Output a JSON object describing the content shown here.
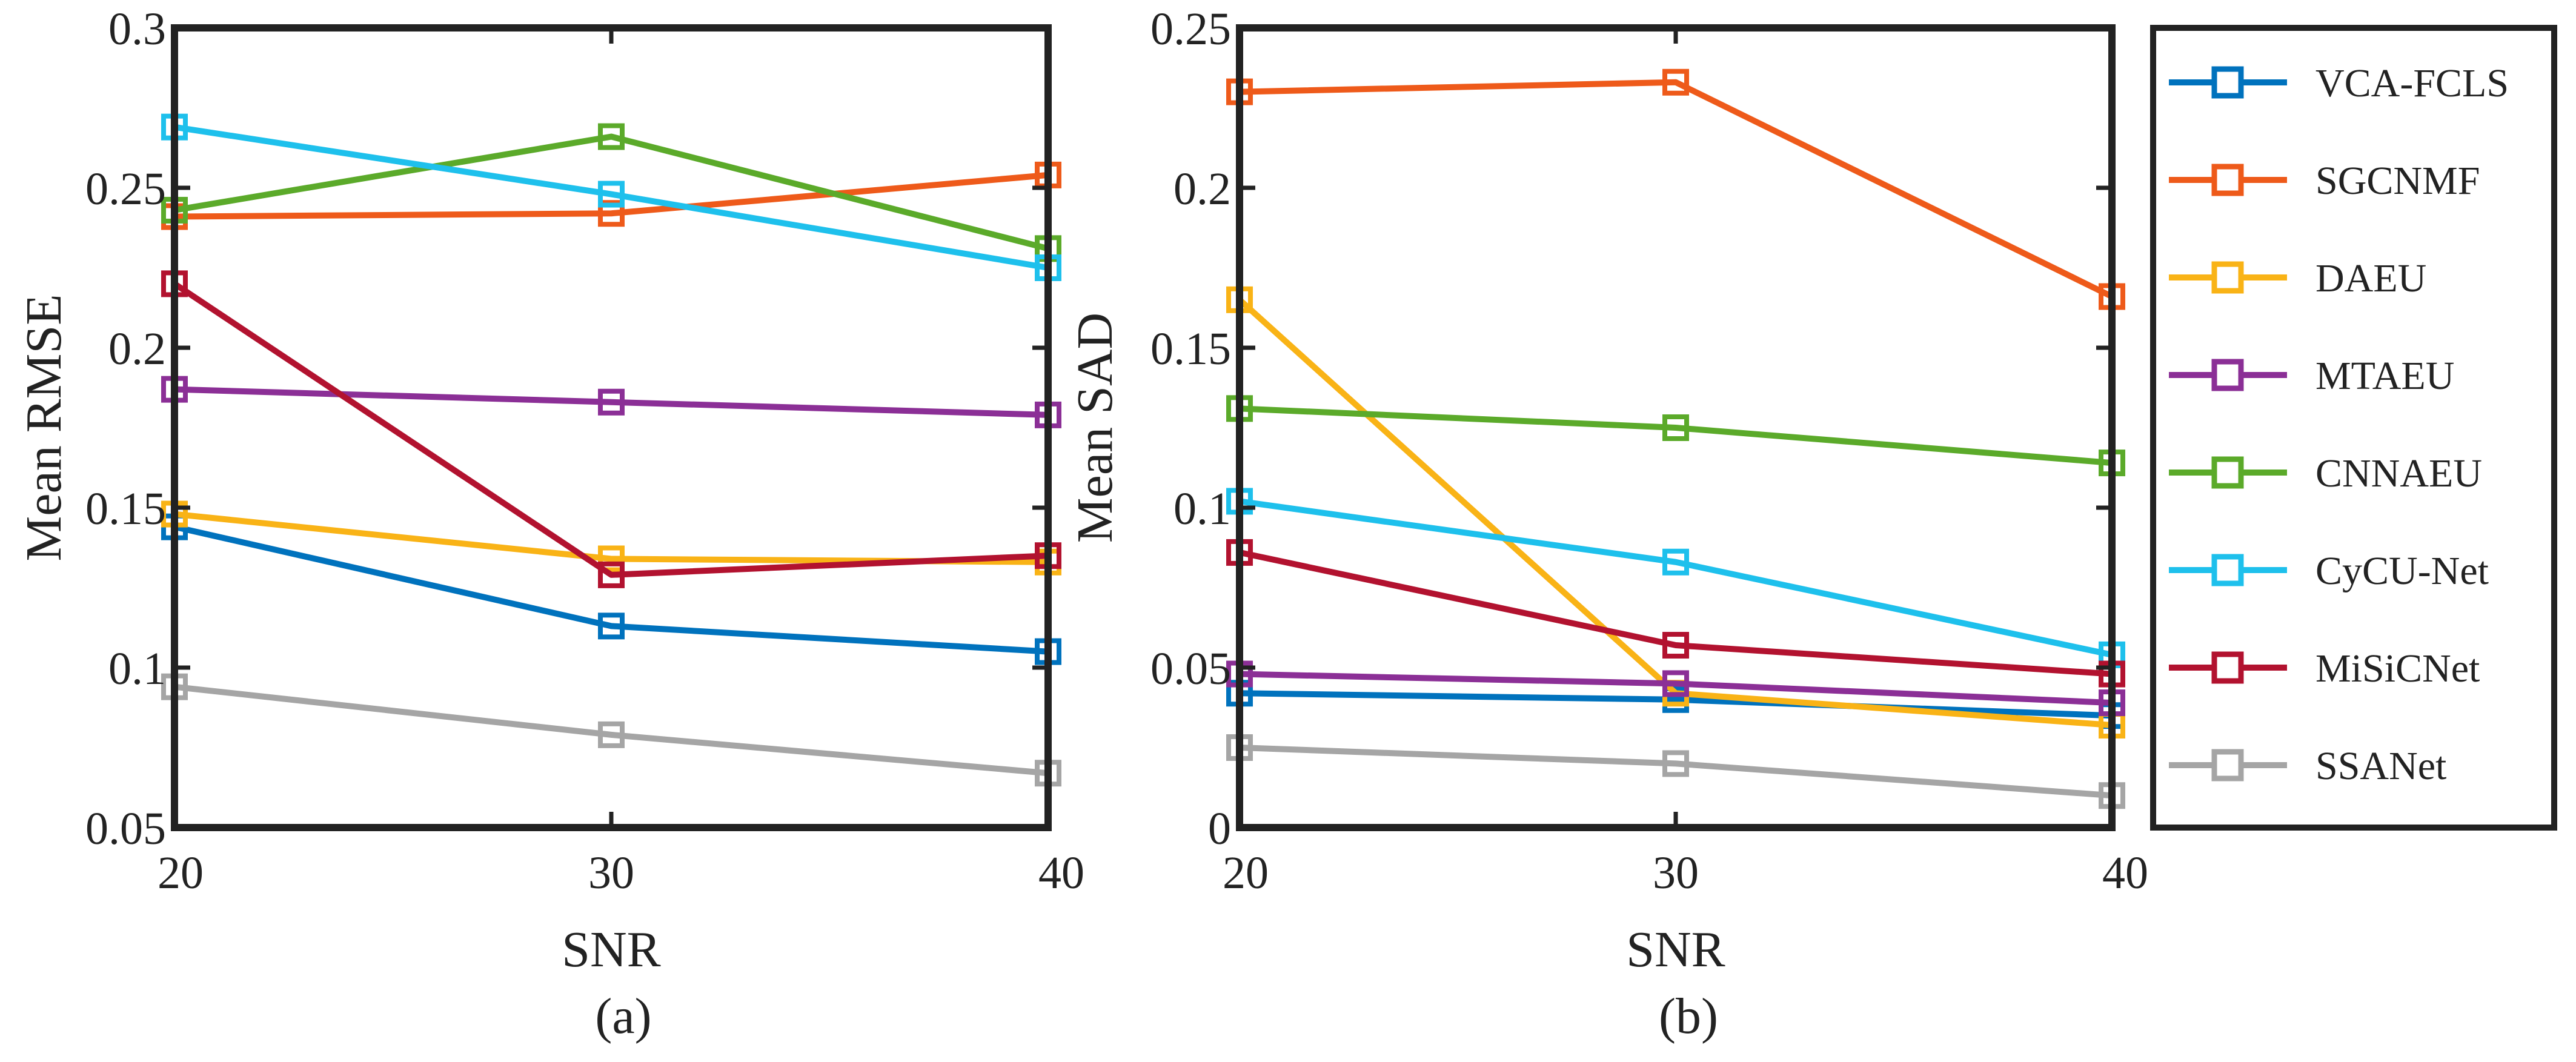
{
  "colors": {
    "VCA-FCLS": "#0072BD",
    "SGCNMF": "#EE5A1A",
    "DAEU": "#F9B316",
    "MTAEU": "#8B2F96",
    "CNNAEU": "#5BAA2A",
    "CyCU-Net": "#1EC0EC",
    "MiSiCNet": "#B2122F",
    "SSANet": "#A5A5A5",
    "axis": "#222222"
  },
  "legend": {
    "entries": [
      "VCA-FCLS",
      "SGCNMF",
      "DAEU",
      "MTAEU",
      "CNNAEU",
      "CyCU-Net",
      "MiSiCNet",
      "SSANet"
    ],
    "placement": "right"
  },
  "chart_data": [
    {
      "type": "line",
      "panel_label": "(a)",
      "xlabel": "SNR",
      "ylabel": "Mean RMSE",
      "x": [
        20,
        30,
        40
      ],
      "xticks": [
        "20",
        "30",
        "40"
      ],
      "ylim": [
        0.05,
        0.3
      ],
      "yticks": [
        0.05,
        0.1,
        0.15,
        0.2,
        0.25,
        0.3
      ],
      "ytick_labels": [
        "0.05",
        "0.1",
        "0.15",
        "0.2",
        "0.25",
        "0.3"
      ],
      "grid": false,
      "marker": "square",
      "series": [
        {
          "name": "VCA-FCLS",
          "values": [
            0.144,
            0.113,
            0.105
          ]
        },
        {
          "name": "SGCNMF",
          "values": [
            0.241,
            0.242,
            0.254
          ]
        },
        {
          "name": "DAEU",
          "values": [
            0.148,
            0.134,
            0.133
          ]
        },
        {
          "name": "MTAEU",
          "values": [
            0.187,
            0.183,
            0.179
          ]
        },
        {
          "name": "CNNAEU",
          "values": [
            0.243,
            0.266,
            0.231
          ]
        },
        {
          "name": "CyCU-Net",
          "values": [
            0.269,
            0.248,
            0.225
          ]
        },
        {
          "name": "MiSiCNet",
          "values": [
            0.22,
            0.129,
            0.135
          ]
        },
        {
          "name": "SSANet",
          "values": [
            0.094,
            0.079,
            0.067
          ]
        }
      ]
    },
    {
      "type": "line",
      "panel_label": "(b)",
      "xlabel": "SNR",
      "ylabel": "Mean SAD",
      "x": [
        20,
        30,
        40
      ],
      "xticks": [
        "20",
        "30",
        "40"
      ],
      "ylim": [
        0,
        0.25
      ],
      "yticks": [
        0,
        0.05,
        0.1,
        0.15,
        0.2,
        0.25
      ],
      "ytick_labels": [
        "0",
        "0.05",
        "0.1",
        "0.15",
        "0.2",
        "0.25"
      ],
      "grid": false,
      "marker": "square",
      "series": [
        {
          "name": "VCA-FCLS",
          "values": [
            0.042,
            0.04,
            0.035
          ]
        },
        {
          "name": "SGCNMF",
          "values": [
            0.23,
            0.233,
            0.166
          ]
        },
        {
          "name": "DAEU",
          "values": [
            0.165,
            0.042,
            0.032
          ]
        },
        {
          "name": "MTAEU",
          "values": [
            0.048,
            0.045,
            0.039
          ]
        },
        {
          "name": "CNNAEU",
          "values": [
            0.131,
            0.125,
            0.114
          ]
        },
        {
          "name": "CyCU-Net",
          "values": [
            0.102,
            0.083,
            0.054
          ]
        },
        {
          "name": "MiSiCNet",
          "values": [
            0.086,
            0.057,
            0.048
          ]
        },
        {
          "name": "SSANet",
          "values": [
            0.025,
            0.02,
            0.01
          ]
        }
      ]
    }
  ]
}
